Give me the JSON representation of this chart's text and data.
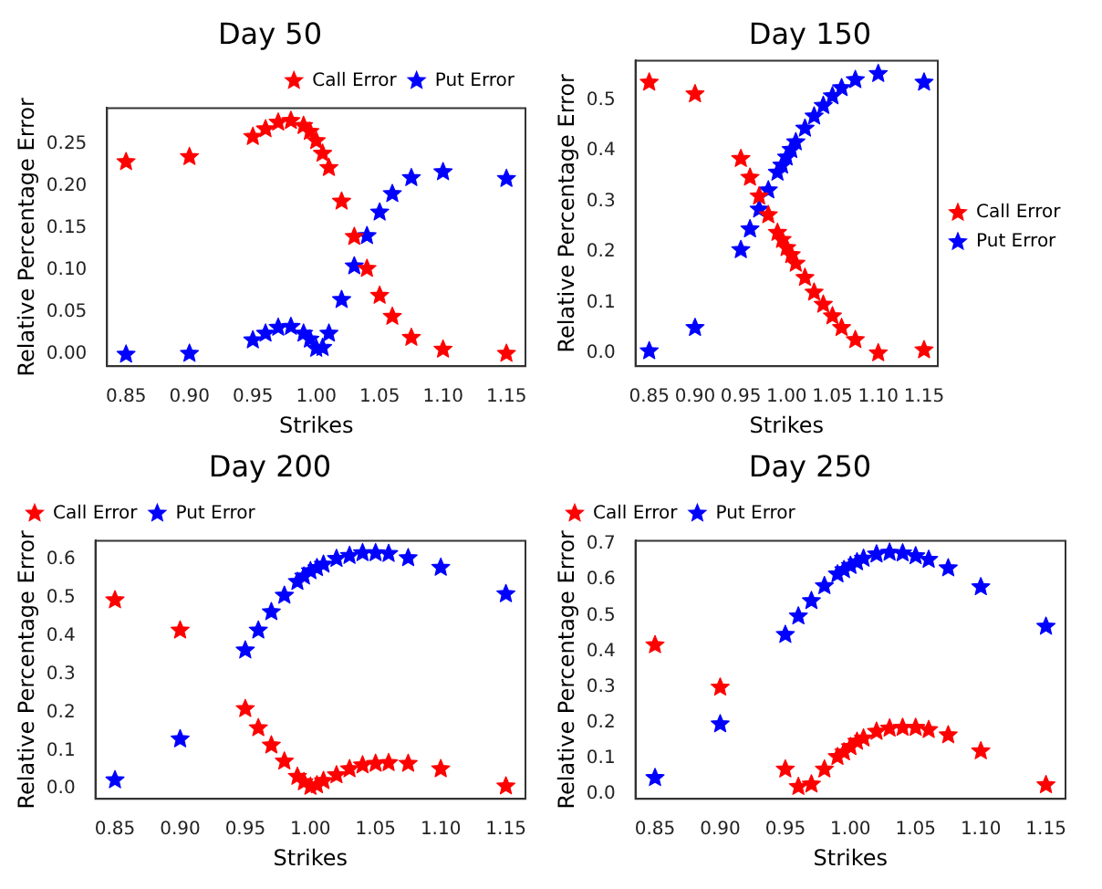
{
  "chart_data": [
    {
      "type": "scatter",
      "title": "Day 50",
      "xlabel": "Strikes",
      "ylabel": "Relative Percentage Error",
      "marker": "star",
      "legend": "top right",
      "x": [
        0.85,
        0.9,
        0.95,
        0.96,
        0.97,
        0.98,
        0.99,
        0.995,
        1.0,
        1.005,
        1.01,
        1.02,
        1.03,
        1.04,
        1.05,
        1.06,
        1.075,
        1.1,
        1.15
      ],
      "xlim": [
        0.835,
        1.165
      ],
      "xticks": [
        0.85,
        {
          "value": 0.9,
          "label": "0.90"
        },
        0.95,
        {
          "value": 1.0,
          "label": "1.00"
        },
        1.05,
        {
          "value": 1.1,
          "label": "1.10"
        },
        1.15
      ],
      "ylim": [
        -0.014,
        0.293
      ],
      "yticks": [
        {
          "value": 0,
          "label": "0.00"
        },
        0.05,
        {
          "value": 0.1,
          "label": "0.10"
        },
        0.15,
        {
          "value": 0.2,
          "label": "0.20"
        },
        0.25
      ],
      "series": [
        {
          "name": "Call Error",
          "color": "#ff0000",
          "values": [
            0.229,
            0.235,
            0.259,
            0.268,
            0.276,
            0.278,
            0.272,
            0.265,
            0.254,
            0.239,
            0.222,
            0.182,
            0.14,
            0.102,
            0.07,
            0.045,
            0.02,
            0.006,
            0.001
          ]
        },
        {
          "name": "Put Error",
          "color": "#0000ff",
          "values": [
            0.0,
            0.001,
            0.017,
            0.025,
            0.032,
            0.033,
            0.025,
            0.018,
            0.007,
            0.008,
            0.025,
            0.065,
            0.105,
            0.141,
            0.169,
            0.191,
            0.21,
            0.217,
            0.209
          ]
        }
      ]
    },
    {
      "type": "scatter",
      "title": "Day 150",
      "xlabel": "Strikes",
      "ylabel": "Relative Percentage Error",
      "marker": "star",
      "legend": "right",
      "x": [
        0.85,
        0.9,
        0.95,
        0.96,
        0.97,
        0.98,
        0.99,
        0.995,
        1.0,
        1.005,
        1.01,
        1.02,
        1.03,
        1.04,
        1.05,
        1.06,
        1.075,
        1.1,
        1.15
      ],
      "xlim": [
        0.835,
        1.165
      ],
      "xticks": [
        0.85,
        {
          "value": 0.9,
          "label": "0.90"
        },
        0.95,
        {
          "value": 1.0,
          "label": "1.00"
        },
        1.05,
        {
          "value": 1.1,
          "label": "1.10"
        },
        1.15
      ],
      "ylim": [
        -0.026,
        0.578
      ],
      "yticks": [
        {
          "value": 0,
          "label": "0.0"
        },
        0.1,
        0.2,
        0.3,
        0.4,
        0.5
      ],
      "series": [
        {
          "name": "Call Error",
          "color": "#ff0000",
          "values": [
            0.535,
            0.512,
            0.384,
            0.347,
            0.31,
            0.273,
            0.238,
            0.224,
            0.208,
            0.194,
            0.177,
            0.149,
            0.12,
            0.096,
            0.073,
            0.05,
            0.026,
            0.0,
            0.006
          ]
        },
        {
          "name": "Put Error",
          "color": "#0000ff",
          "values": [
            0.004,
            0.05,
            0.204,
            0.245,
            0.284,
            0.322,
            0.357,
            0.371,
            0.387,
            0.402,
            0.417,
            0.444,
            0.468,
            0.489,
            0.508,
            0.524,
            0.54,
            0.552,
            0.535
          ]
        }
      ]
    },
    {
      "type": "scatter",
      "title": "Day 200",
      "xlabel": "Strikes",
      "ylabel": "Relative Percentage Error",
      "marker": "star",
      "legend": "top left",
      "x": [
        0.85,
        0.9,
        0.95,
        0.96,
        0.97,
        0.98,
        0.99,
        0.995,
        1.0,
        1.005,
        1.01,
        1.02,
        1.03,
        1.04,
        1.05,
        1.06,
        1.075,
        1.1,
        1.15
      ],
      "xlim": [
        0.835,
        1.165
      ],
      "xticks": [
        0.85,
        {
          "value": 0.9,
          "label": "0.90"
        },
        0.95,
        {
          "value": 1.0,
          "label": "1.00"
        },
        1.05,
        {
          "value": 1.1,
          "label": "1.10"
        },
        1.15
      ],
      "ylim": [
        -0.026,
        0.648
      ],
      "yticks": [
        {
          "value": 0,
          "label": "0.0"
        },
        0.1,
        0.2,
        0.3,
        0.4,
        0.5,
        0.6
      ],
      "series": [
        {
          "name": "Call Error",
          "color": "#ff0000",
          "values": [
            0.493,
            0.414,
            0.209,
            0.159,
            0.114,
            0.072,
            0.032,
            0.018,
            0.006,
            0.01,
            0.021,
            0.036,
            0.052,
            0.062,
            0.066,
            0.068,
            0.066,
            0.052,
            0.007
          ]
        },
        {
          "name": "Put Error",
          "color": "#0000ff",
          "values": [
            0.023,
            0.13,
            0.362,
            0.414,
            0.462,
            0.505,
            0.541,
            0.555,
            0.569,
            0.577,
            0.586,
            0.601,
            0.609,
            0.616,
            0.616,
            0.614,
            0.603,
            0.578,
            0.509
          ]
        }
      ]
    },
    {
      "type": "scatter",
      "title": "Day 250",
      "xlabel": "Strikes",
      "ylabel": "Relative Percentage Error",
      "marker": "star",
      "legend": "top left",
      "x": [
        0.85,
        0.9,
        0.95,
        0.96,
        0.97,
        0.98,
        0.99,
        0.995,
        1.0,
        1.005,
        1.01,
        1.02,
        1.03,
        1.04,
        1.05,
        1.06,
        1.075,
        1.1,
        1.15
      ],
      "xlim": [
        0.835,
        1.165
      ],
      "xticks": [
        0.85,
        {
          "value": 0.9,
          "label": "0.90"
        },
        0.95,
        {
          "value": 1.0,
          "label": "1.00"
        },
        1.05,
        {
          "value": 1.1,
          "label": "1.10"
        },
        1.15
      ],
      "ylim": [
        -0.015,
        0.71
      ],
      "yticks": [
        {
          "value": 0,
          "label": "0.0"
        },
        0.1,
        0.2,
        0.3,
        0.4,
        0.5,
        0.6,
        0.7
      ],
      "series": [
        {
          "name": "Call Error",
          "color": "#ff0000",
          "values": [
            0.417,
            0.298,
            0.068,
            0.019,
            0.026,
            0.068,
            0.103,
            0.116,
            0.131,
            0.146,
            0.155,
            0.174,
            0.183,
            0.185,
            0.185,
            0.179,
            0.164,
            0.119,
            0.024
          ]
        },
        {
          "name": "Put Error",
          "color": "#0000ff",
          "values": [
            0.044,
            0.195,
            0.446,
            0.498,
            0.541,
            0.583,
            0.616,
            0.628,
            0.64,
            0.65,
            0.66,
            0.672,
            0.677,
            0.675,
            0.667,
            0.657,
            0.633,
            0.58,
            0.469
          ]
        }
      ]
    }
  ]
}
